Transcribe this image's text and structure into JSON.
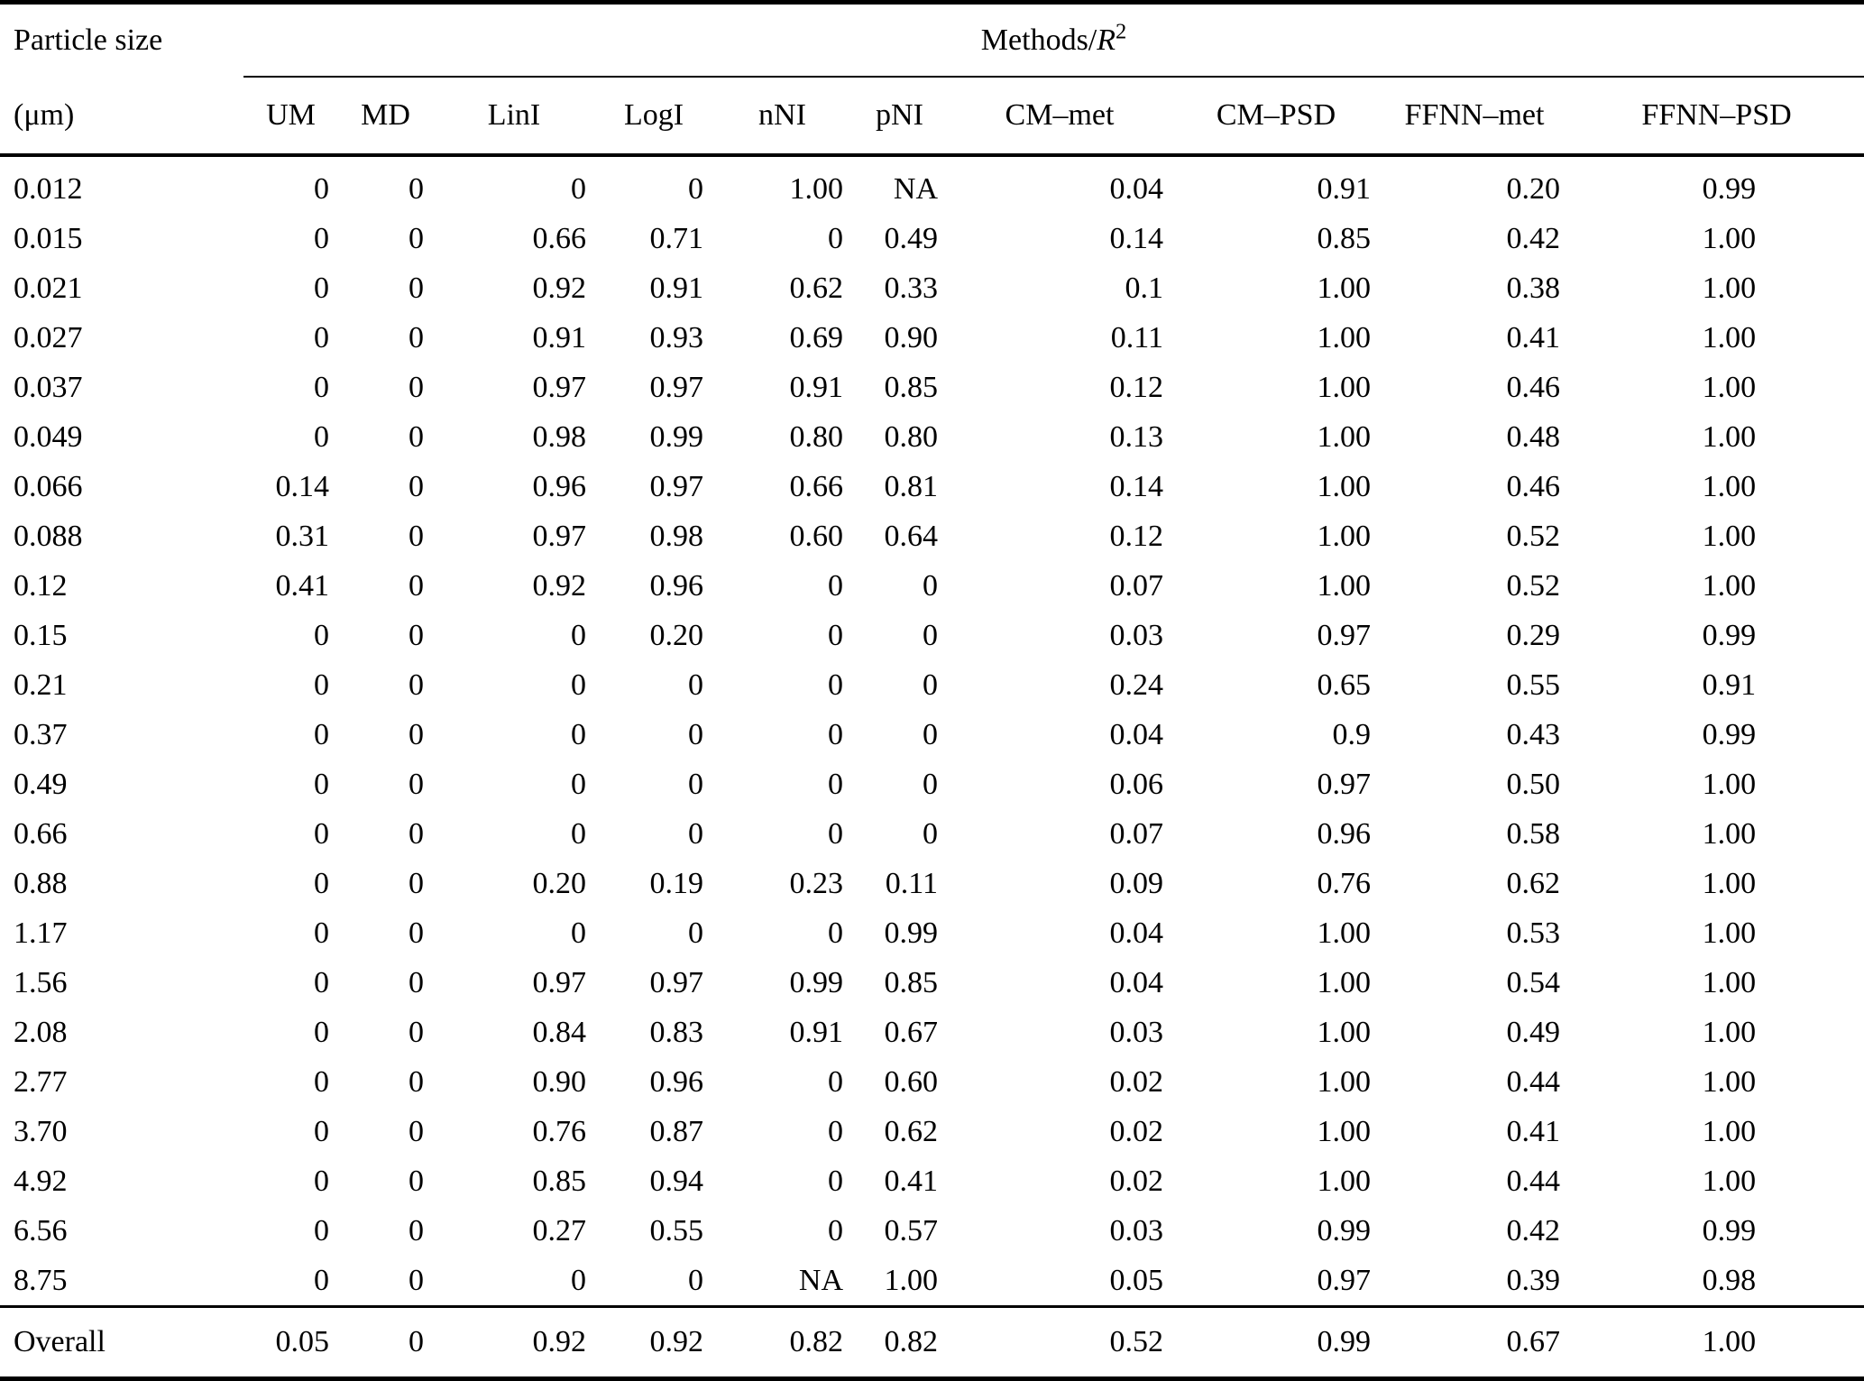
{
  "page": {
    "background_color": "#ffffff",
    "text_color": "#000000"
  },
  "table": {
    "header": {
      "col1_line1": "Particle size",
      "col1_line2": "(μm)",
      "group_label_prefix": "Methods/",
      "group_label_var": "R",
      "group_label_sup": "2",
      "method_columns": [
        "UM",
        "MD",
        "LinI",
        "LogI",
        "nNI",
        "pNI",
        "CM–met",
        "CM–PSD",
        "FFNN–met",
        "FFNN–PSD"
      ]
    },
    "rows": [
      {
        "size": "0.012",
        "values": [
          "0",
          "0",
          "0",
          "0",
          "1.00",
          "NA",
          "0.04",
          "0.91",
          "0.20",
          "0.99"
        ]
      },
      {
        "size": "0.015",
        "values": [
          "0",
          "0",
          "0.66",
          "0.71",
          "0",
          "0.49",
          "0.14",
          "0.85",
          "0.42",
          "1.00"
        ]
      },
      {
        "size": "0.021",
        "values": [
          "0",
          "0",
          "0.92",
          "0.91",
          "0.62",
          "0.33",
          "0.1",
          "1.00",
          "0.38",
          "1.00"
        ]
      },
      {
        "size": "0.027",
        "values": [
          "0",
          "0",
          "0.91",
          "0.93",
          "0.69",
          "0.90",
          "0.11",
          "1.00",
          "0.41",
          "1.00"
        ]
      },
      {
        "size": "0.037",
        "values": [
          "0",
          "0",
          "0.97",
          "0.97",
          "0.91",
          "0.85",
          "0.12",
          "1.00",
          "0.46",
          "1.00"
        ]
      },
      {
        "size": "0.049",
        "values": [
          "0",
          "0",
          "0.98",
          "0.99",
          "0.80",
          "0.80",
          "0.13",
          "1.00",
          "0.48",
          "1.00"
        ]
      },
      {
        "size": "0.066",
        "values": [
          "0.14",
          "0",
          "0.96",
          "0.97",
          "0.66",
          "0.81",
          "0.14",
          "1.00",
          "0.46",
          "1.00"
        ]
      },
      {
        "size": "0.088",
        "values": [
          "0.31",
          "0",
          "0.97",
          "0.98",
          "0.60",
          "0.64",
          "0.12",
          "1.00",
          "0.52",
          "1.00"
        ]
      },
      {
        "size": "0.12",
        "values": [
          "0.41",
          "0",
          "0.92",
          "0.96",
          "0",
          "0",
          "0.07",
          "1.00",
          "0.52",
          "1.00"
        ]
      },
      {
        "size": "0.15",
        "values": [
          "0",
          "0",
          "0",
          "0.20",
          "0",
          "0",
          "0.03",
          "0.97",
          "0.29",
          "0.99"
        ]
      },
      {
        "size": "0.21",
        "values": [
          "0",
          "0",
          "0",
          "0",
          "0",
          "0",
          "0.24",
          "0.65",
          "0.55",
          "0.91"
        ]
      },
      {
        "size": "0.37",
        "values": [
          "0",
          "0",
          "0",
          "0",
          "0",
          "0",
          "0.04",
          "0.9",
          "0.43",
          "0.99"
        ]
      },
      {
        "size": "0.49",
        "values": [
          "0",
          "0",
          "0",
          "0",
          "0",
          "0",
          "0.06",
          "0.97",
          "0.50",
          "1.00"
        ]
      },
      {
        "size": "0.66",
        "values": [
          "0",
          "0",
          "0",
          "0",
          "0",
          "0",
          "0.07",
          "0.96",
          "0.58",
          "1.00"
        ]
      },
      {
        "size": "0.88",
        "values": [
          "0",
          "0",
          "0.20",
          "0.19",
          "0.23",
          "0.11",
          "0.09",
          "0.76",
          "0.62",
          "1.00"
        ]
      },
      {
        "size": "1.17",
        "values": [
          "0",
          "0",
          "0",
          "0",
          "0",
          "0.99",
          "0.04",
          "1.00",
          "0.53",
          "1.00"
        ]
      },
      {
        "size": "1.56",
        "values": [
          "0",
          "0",
          "0.97",
          "0.97",
          "0.99",
          "0.85",
          "0.04",
          "1.00",
          "0.54",
          "1.00"
        ]
      },
      {
        "size": "2.08",
        "values": [
          "0",
          "0",
          "0.84",
          "0.83",
          "0.91",
          "0.67",
          "0.03",
          "1.00",
          "0.49",
          "1.00"
        ]
      },
      {
        "size": "2.77",
        "values": [
          "0",
          "0",
          "0.90",
          "0.96",
          "0",
          "0.60",
          "0.02",
          "1.00",
          "0.44",
          "1.00"
        ]
      },
      {
        "size": "3.70",
        "values": [
          "0",
          "0",
          "0.76",
          "0.87",
          "0",
          "0.62",
          "0.02",
          "1.00",
          "0.41",
          "1.00"
        ]
      },
      {
        "size": "4.92",
        "values": [
          "0",
          "0",
          "0.85",
          "0.94",
          "0",
          "0.41",
          "0.02",
          "1.00",
          "0.44",
          "1.00"
        ]
      },
      {
        "size": "6.56",
        "values": [
          "0",
          "0",
          "0.27",
          "0.55",
          "0",
          "0.57",
          "0.03",
          "0.99",
          "0.42",
          "0.99"
        ]
      },
      {
        "size": "8.75",
        "values": [
          "0",
          "0",
          "0",
          "0",
          "NA",
          "1.00",
          "0.05",
          "0.97",
          "0.39",
          "0.98"
        ]
      }
    ],
    "overall": {
      "label": "Overall",
      "values": [
        "0.05",
        "0",
        "0.92",
        "0.92",
        "0.82",
        "0.82",
        "0.52",
        "0.99",
        "0.67",
        "1.00"
      ]
    }
  }
}
